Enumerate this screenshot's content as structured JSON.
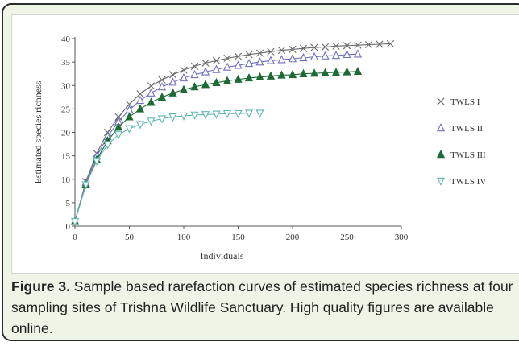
{
  "chart_data": {
    "type": "line",
    "xlabel": "Individuals",
    "ylabel": "Estimated species richness",
    "xlim": [
      0,
      300
    ],
    "ylim": [
      0,
      40
    ],
    "xticks": [
      0,
      50,
      100,
      150,
      200,
      250,
      300
    ],
    "yticks": [
      0,
      5,
      10,
      15,
      20,
      25,
      30,
      35,
      40
    ],
    "grid": false,
    "legend_position": "right",
    "series": [
      {
        "name": "TWLS I",
        "marker": "x",
        "color": "#6a6a6a",
        "x": [
          0,
          10,
          20,
          30,
          40,
          50,
          60,
          70,
          80,
          90,
          100,
          110,
          120,
          130,
          140,
          150,
          160,
          170,
          180,
          190,
          200,
          210,
          220,
          230,
          240,
          250,
          260,
          270,
          280,
          290
        ],
        "y": [
          1,
          9.5,
          15.5,
          20,
          23.3,
          26,
          28.2,
          29.9,
          31.2,
          32.3,
          33.3,
          34.1,
          34.8,
          35.3,
          35.8,
          36.2,
          36.6,
          36.9,
          37.2,
          37.5,
          37.7,
          37.9,
          38.1,
          38.2,
          38.4,
          38.5,
          38.6,
          38.7,
          38.8,
          38.9
        ]
      },
      {
        "name": "TWLS II",
        "marker": "triangle-open",
        "color": "#6f6fbf",
        "x": [
          0,
          10,
          20,
          30,
          40,
          50,
          60,
          70,
          80,
          90,
          100,
          110,
          120,
          130,
          140,
          150,
          160,
          170,
          180,
          190,
          200,
          210,
          220,
          230,
          240,
          250,
          260
        ],
        "y": [
          1,
          9.2,
          14.9,
          19.1,
          22.3,
          24.8,
          26.8,
          28.4,
          29.7,
          30.7,
          31.6,
          32.3,
          32.9,
          33.4,
          33.9,
          34.3,
          34.7,
          35,
          35.3,
          35.5,
          35.7,
          35.9,
          36.1,
          36.3,
          36.4,
          36.6,
          36.7
        ]
      },
      {
        "name": "TWLS III",
        "marker": "triangle-filled",
        "color": "#1f6b35",
        "x": [
          0,
          10,
          20,
          30,
          40,
          50,
          60,
          70,
          80,
          90,
          100,
          110,
          120,
          130,
          140,
          150,
          160,
          170,
          180,
          190,
          200,
          210,
          220,
          230,
          240,
          250,
          260
        ],
        "y": [
          1,
          8.8,
          14.2,
          18.2,
          21.1,
          23.3,
          25,
          26.4,
          27.5,
          28.4,
          29.1,
          29.7,
          30.2,
          30.6,
          31,
          31.3,
          31.6,
          31.8,
          32,
          32.2,
          32.3,
          32.5,
          32.6,
          32.7,
          32.8,
          32.9,
          33
        ]
      },
      {
        "name": "TWLS IV",
        "marker": "triangle-down-open",
        "color": "#5fb8b2",
        "x": [
          0,
          10,
          20,
          30,
          40,
          50,
          60,
          70,
          80,
          90,
          100,
          110,
          120,
          130,
          140,
          150,
          160,
          170
        ],
        "y": [
          1,
          8.8,
          13.9,
          17.4,
          19.5,
          20.8,
          21.7,
          22.4,
          22.9,
          23.3,
          23.5,
          23.7,
          23.8,
          23.9,
          24,
          24,
          24.1,
          24.1
        ]
      }
    ]
  },
  "caption": {
    "label": "Figure 3.",
    "text": " Sample based rarefaction curves of estimated species richness at four sampling sites of Trishna Wildlife Sanctuary. High quality figures are available online."
  }
}
